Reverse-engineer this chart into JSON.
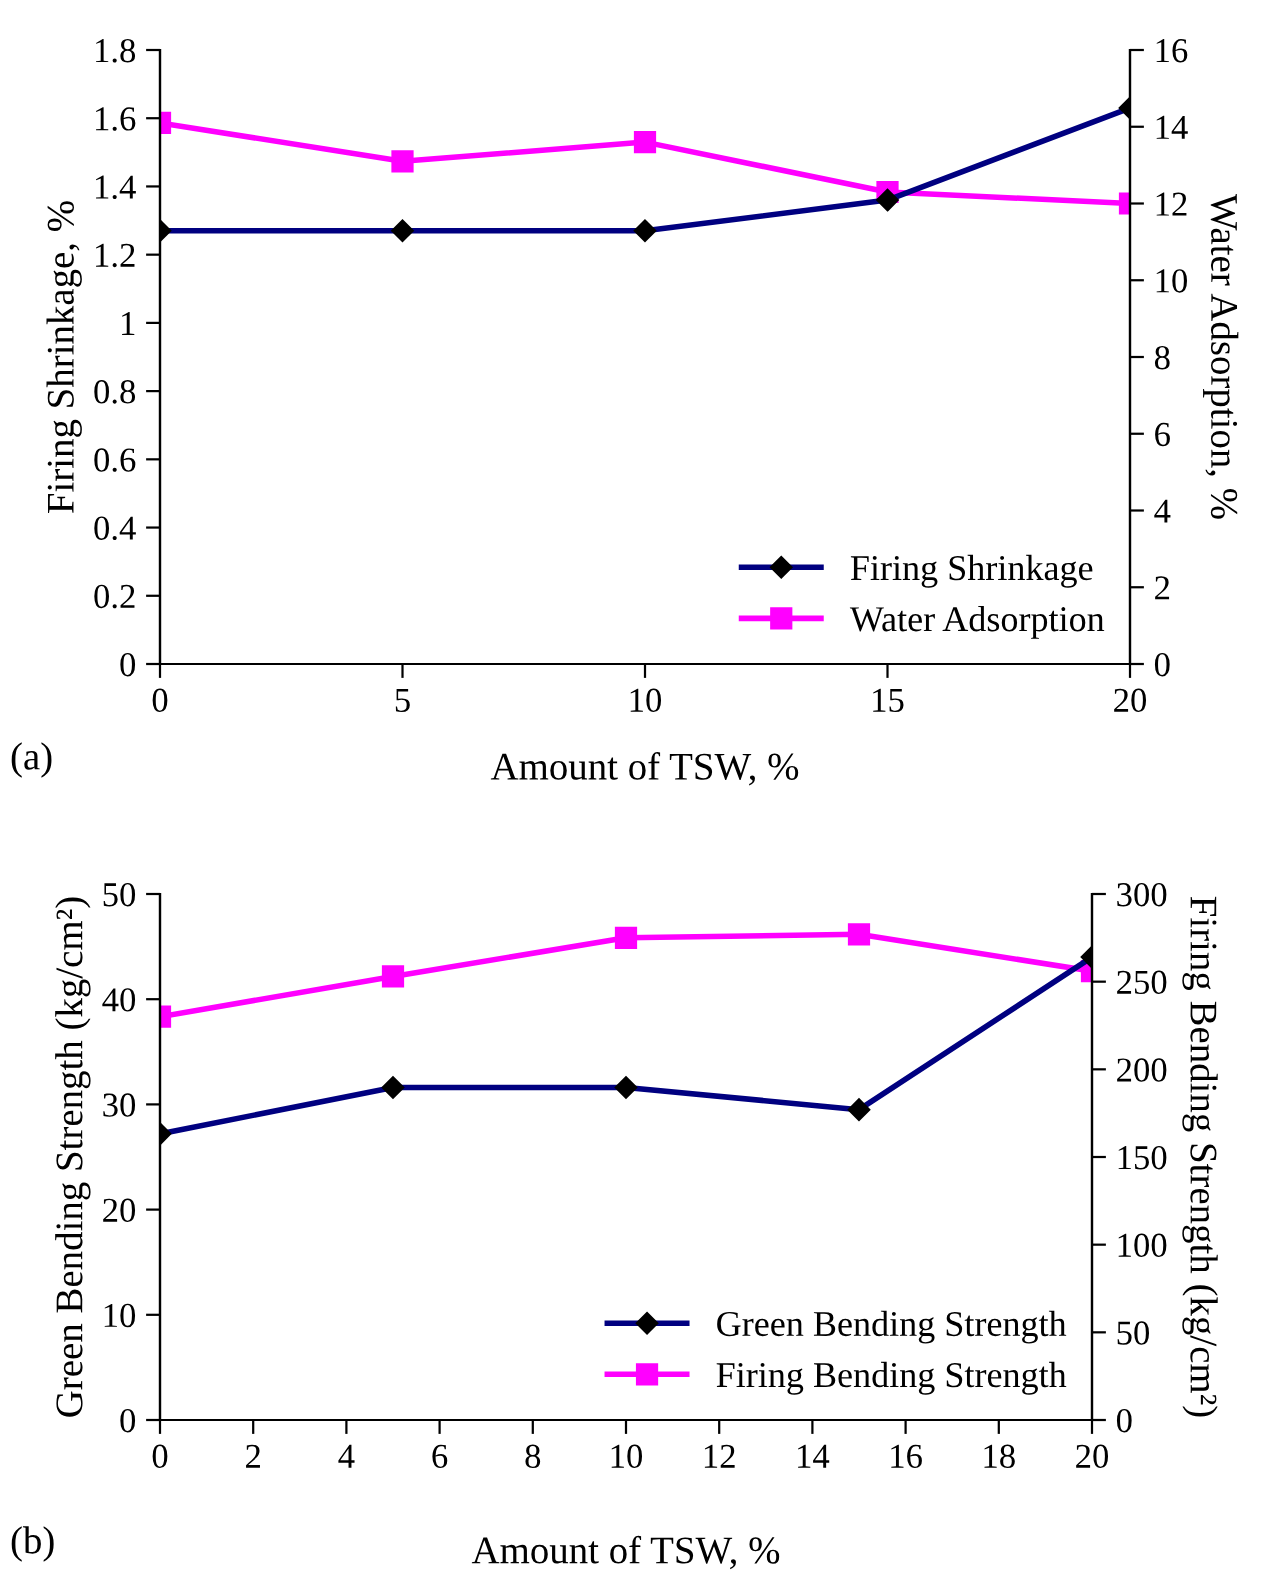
{
  "chart_data": [
    {
      "type": "line",
      "xlabel": "Amount of TSW, %",
      "ylabel": "Firing Shrinkage, %",
      "y2label": "Water Adsorption, %",
      "annotations": [
        "(a)"
      ],
      "x": [
        0,
        5,
        10,
        15,
        20
      ],
      "xlim": [
        0,
        20
      ],
      "xticks": [
        0,
        5,
        10,
        15,
        20
      ],
      "ylim": [
        0,
        1.8
      ],
      "yticks": [
        0,
        0.2,
        0.4,
        0.6,
        0.8,
        1,
        1.2,
        1.4,
        1.6,
        1.8
      ],
      "y2lim": [
        0,
        16
      ],
      "y2ticks": [
        0,
        2,
        4,
        6,
        8,
        10,
        12,
        14,
        16
      ],
      "grid": false,
      "legend": "bottom right",
      "series": [
        {
          "name": "Firing Shrinkage",
          "color": "#000080",
          "marker": "diamond",
          "values": [
            1.27,
            1.27,
            1.27,
            1.36,
            1.63
          ]
        },
        {
          "name": "Water Adsorption",
          "color": "#ff00ff",
          "marker": "square",
          "axis": "y2",
          "values": [
            14.1,
            13.1,
            13.6,
            12.3,
            12.0
          ]
        }
      ]
    },
    {
      "type": "line",
      "xlabel": "Amount of TSW, %",
      "ylabel": "Green Bending Strength (kg/cm²)",
      "y2label": "Firing Bending Strength (kg/cm²)",
      "annotations": [
        "(b)"
      ],
      "x": [
        0,
        5,
        10,
        15,
        20
      ],
      "xlim": [
        0,
        20
      ],
      "xticks": [
        0,
        2,
        4,
        6,
        8,
        10,
        12,
        14,
        16,
        18,
        20
      ],
      "ylim": [
        0,
        50
      ],
      "yticks": [
        0,
        10,
        20,
        30,
        40,
        50
      ],
      "y2lim": [
        0,
        300
      ],
      "y2ticks": [
        0,
        50,
        100,
        150,
        200,
        250,
        300
      ],
      "grid": false,
      "legend": "bottom right",
      "series": [
        {
          "name": "Green Bending Strength",
          "color": "#000080",
          "marker": "diamond",
          "values": [
            27.2,
            31.6,
            31.6,
            29.5,
            44.0
          ]
        },
        {
          "name": "Firing Bending Strength",
          "color": "#ff00ff",
          "marker": "square",
          "axis": "y2",
          "values": [
            230,
            253,
            275,
            277,
            256
          ]
        }
      ]
    }
  ]
}
